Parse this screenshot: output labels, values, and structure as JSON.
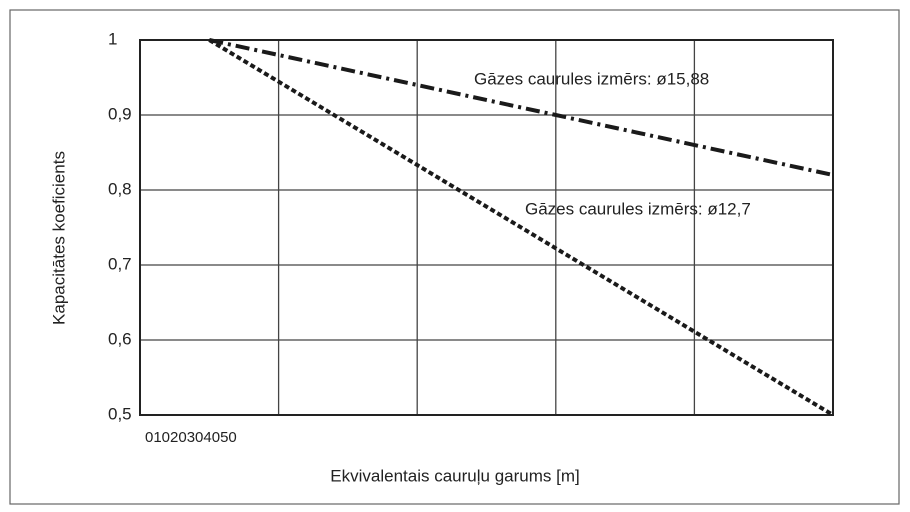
{
  "chart_data": {
    "type": "line",
    "xlabel": "Ekvivalentais cauruļu garums [m]",
    "ylabel": "Kapacitātes koeficients",
    "xlim": [
      0,
      50
    ],
    "xticks": [
      0,
      10,
      20,
      30,
      40,
      50
    ],
    "ylim": [
      0.5,
      1
    ],
    "yticks": [
      {
        "value": 0.5,
        "label": "0,5"
      },
      {
        "value": 0.6,
        "label": "0,6"
      },
      {
        "value": 0.7,
        "label": "0,7"
      },
      {
        "value": 0.8,
        "label": "0,8"
      },
      {
        "value": 0.9,
        "label": "0,9"
      },
      1
    ],
    "grid": true,
    "series": [
      {
        "name": "Gāzes caurules izmērs: ø15,88",
        "color": "#1a1a1a",
        "style": "dashdot",
        "x": [
          5,
          50
        ],
        "values": [
          1,
          0.82
        ]
      },
      {
        "name": "Gāzes caurules izmērs: ø12,7",
        "color": "#1a1a1a",
        "style": "dotted",
        "x": [
          5,
          50
        ],
        "values": [
          1,
          0.5
        ]
      }
    ]
  }
}
